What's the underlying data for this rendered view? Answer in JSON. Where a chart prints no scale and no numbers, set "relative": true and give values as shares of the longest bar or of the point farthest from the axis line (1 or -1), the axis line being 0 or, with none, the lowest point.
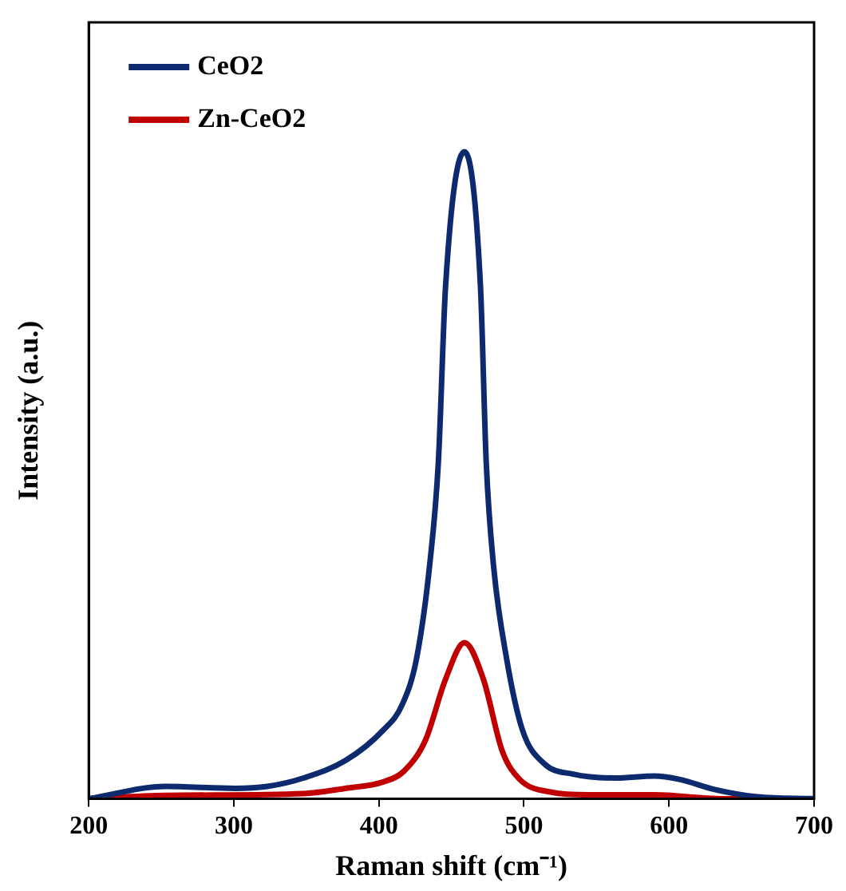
{
  "chart_data": {
    "type": "line",
    "xlabel": "Raman shift (cm⁻¹)",
    "ylabel": "Intensity (a.u.)",
    "relative": true,
    "xlim": [
      200,
      700
    ],
    "xticks": [
      200,
      300,
      400,
      500,
      600,
      700
    ],
    "grid": false,
    "legend": "top left",
    "marker": "none",
    "line_style": "solid",
    "series": [
      {
        "name": "CeO2",
        "color": "#0d2a6e",
        "x": [
          200,
          253,
          301,
          323,
          348,
          377,
          403,
          416,
          426,
          435,
          441,
          446,
          459,
          470,
          474,
          479,
          488,
          499,
          514,
          534,
          563,
          590,
          607,
          632,
          661,
          700
        ],
        "values": [
          0,
          0.019,
          0.016,
          0.019,
          0.032,
          0.059,
          0.106,
          0.145,
          0.217,
          0.361,
          0.52,
          0.793,
          1,
          0.793,
          0.52,
          0.361,
          0.217,
          0.106,
          0.054,
          0.038,
          0.032,
          0.035,
          0.03,
          0.014,
          0.003,
          0
        ]
      },
      {
        "name": "Zn-CeO2",
        "color": "#c00000",
        "x": [
          200,
          253,
          348,
          377,
          403,
          417,
          432,
          446,
          459,
          472,
          485,
          497,
          519,
          545,
          590,
          636,
          700
        ],
        "values": [
          0,
          0.005,
          0.008,
          0.016,
          0.026,
          0.042,
          0.09,
          0.185,
          0.241,
          0.185,
          0.074,
          0.03,
          0.01,
          0.006,
          0.006,
          0,
          0
        ]
      }
    ]
  }
}
